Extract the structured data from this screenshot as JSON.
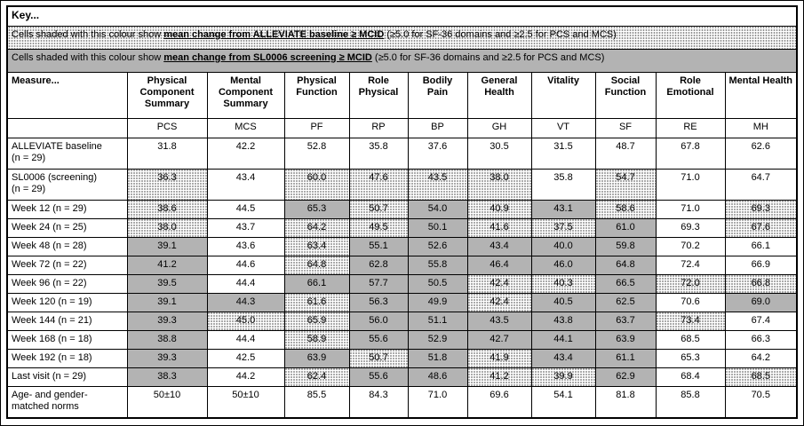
{
  "colors": {
    "light_shade": "#e8e8e8",
    "dark_shade": "#b3b3b3",
    "border": "#000000",
    "background": "#ffffff"
  },
  "key": {
    "title": "Key...",
    "light_prefix": "Cells shaded with this colour show ",
    "light_bold": "mean change from ALLEVIATE baseline ≥ MCID",
    "light_suffix": " (≥5.0 for SF-36 domains and ≥2.5 for PCS and MCS)",
    "dark_prefix": "Cells shaded with this colour show ",
    "dark_bold": "mean change from SL0006 screening ≥ MCID",
    "dark_suffix": " (≥5.0 for SF-36 domains and ≥2.5 for PCS and MCS)"
  },
  "table": {
    "measure_header": "Measure...",
    "columns": [
      {
        "label": "Physical Component Summary",
        "abbr": "PCS"
      },
      {
        "label": "Mental Component Summary",
        "abbr": "MCS"
      },
      {
        "label": "Physical Function",
        "abbr": "PF"
      },
      {
        "label": "Role Physical",
        "abbr": "RP"
      },
      {
        "label": "Bodily Pain",
        "abbr": "BP"
      },
      {
        "label": "General Health",
        "abbr": "GH"
      },
      {
        "label": "Vitality",
        "abbr": "VT"
      },
      {
        "label": "Social Function",
        "abbr": "SF"
      },
      {
        "label": "Role Emotional",
        "abbr": "RE"
      },
      {
        "label": "Mental Health",
        "abbr": "MH"
      }
    ],
    "shade_legend": {
      "none": "no shading",
      "light": "change from ALLEVIATE baseline ≥ MCID",
      "dark": "change from SL0006 screening ≥ MCID"
    },
    "rows": [
      {
        "measure": "ALLEVIATE baseline",
        "measure2": "(n = 29)",
        "values": [
          "31.8",
          "42.2",
          "52.8",
          "35.8",
          "37.6",
          "30.5",
          "31.5",
          "48.7",
          "67.8",
          "62.6"
        ],
        "shades": [
          "none",
          "none",
          "none",
          "none",
          "none",
          "none",
          "none",
          "none",
          "none",
          "none"
        ]
      },
      {
        "measure": "SL0006 (screening)",
        "measure2": "(n = 29)",
        "values": [
          "36.3",
          "43.4",
          "60.0",
          "47.6",
          "43.5",
          "38.0",
          "35.8",
          "54.7",
          "71.0",
          "64.7"
        ],
        "shades": [
          "light",
          "none",
          "light",
          "light",
          "light",
          "light",
          "none",
          "light",
          "none",
          "none"
        ]
      },
      {
        "measure": "Week 12 (n = 29)",
        "measure2": "",
        "values": [
          "38.6",
          "44.5",
          "65.3",
          "50.7",
          "54.0",
          "40.9",
          "43.1",
          "58.6",
          "71.0",
          "69.3"
        ],
        "shades": [
          "light",
          "none",
          "dark",
          "light",
          "dark",
          "light",
          "dark",
          "light",
          "none",
          "light"
        ]
      },
      {
        "measure": "Week 24 (n = 25)",
        "measure2": "",
        "values": [
          "38.0",
          "43.7",
          "64.2",
          "49.5",
          "50.1",
          "41.6",
          "37.5",
          "61.0",
          "69.3",
          "67.6"
        ],
        "shades": [
          "light",
          "none",
          "light",
          "light",
          "dark",
          "light",
          "light",
          "dark",
          "none",
          "light"
        ]
      },
      {
        "measure": "Week 48 (n = 28)",
        "measure2": "",
        "values": [
          "39.1",
          "43.6",
          "63.4",
          "55.1",
          "52.6",
          "43.4",
          "40.0",
          "59.8",
          "70.2",
          "66.1"
        ],
        "shades": [
          "dark",
          "none",
          "light",
          "dark",
          "dark",
          "dark",
          "dark",
          "dark",
          "none",
          "none"
        ]
      },
      {
        "measure": "Week 72 (n = 22)",
        "measure2": "",
        "values": [
          "41.2",
          "44.6",
          "64.8",
          "62.8",
          "55.8",
          "46.4",
          "46.0",
          "64.8",
          "72.4",
          "66.9"
        ],
        "shades": [
          "dark",
          "none",
          "light",
          "dark",
          "dark",
          "dark",
          "dark",
          "dark",
          "none",
          "none"
        ]
      },
      {
        "measure": "Week 96 (n = 22)",
        "measure2": "",
        "values": [
          "39.5",
          "44.4",
          "66.1",
          "57.7",
          "50.5",
          "42.4",
          "40.3",
          "66.5",
          "72.0",
          "66.8"
        ],
        "shades": [
          "dark",
          "none",
          "dark",
          "dark",
          "dark",
          "light",
          "light",
          "dark",
          "light",
          "light"
        ]
      },
      {
        "measure": "Week 120 (n = 19)",
        "measure2": "",
        "values": [
          "39.1",
          "44.3",
          "61.6",
          "56.3",
          "49.9",
          "42.4",
          "40.5",
          "62.5",
          "70.6",
          "69.0"
        ],
        "shades": [
          "dark",
          "dark",
          "light",
          "dark",
          "dark",
          "light",
          "dark",
          "dark",
          "none",
          "dark"
        ]
      },
      {
        "measure": "Week 144 (n = 21)",
        "measure2": "",
        "values": [
          "39.3",
          "45.0",
          "65.9",
          "56.0",
          "51.1",
          "43.5",
          "43.8",
          "63.7",
          "73.4",
          "67.4"
        ],
        "shades": [
          "dark",
          "light",
          "light",
          "dark",
          "dark",
          "dark",
          "dark",
          "dark",
          "light",
          "none"
        ]
      },
      {
        "measure": "Week 168 (n = 18)",
        "measure2": "",
        "values": [
          "38.8",
          "44.4",
          "58.9",
          "55.6",
          "52.9",
          "42.7",
          "44.1",
          "63.9",
          "68.5",
          "66.3"
        ],
        "shades": [
          "dark",
          "none",
          "light",
          "dark",
          "dark",
          "dark",
          "dark",
          "dark",
          "none",
          "none"
        ]
      },
      {
        "measure": "Week 192 (n = 18)",
        "measure2": "",
        "values": [
          "39.3",
          "42.5",
          "63.9",
          "50.7",
          "51.8",
          "41.9",
          "43.4",
          "61.1",
          "65.3",
          "64.2"
        ],
        "shades": [
          "dark",
          "none",
          "dark",
          "light",
          "dark",
          "light",
          "dark",
          "dark",
          "none",
          "none"
        ]
      },
      {
        "measure": "Last visit (n = 29)",
        "measure2": "",
        "values": [
          "38.3",
          "44.2",
          "62.4",
          "55.6",
          "48.6",
          "41.2",
          "39.9",
          "62.9",
          "68.4",
          "68.5"
        ],
        "shades": [
          "dark",
          "none",
          "light",
          "dark",
          "dark",
          "light",
          "light",
          "dark",
          "none",
          "light"
        ]
      },
      {
        "measure": "Age- and gender-",
        "measure2": "matched norms",
        "values": [
          "50±10",
          "50±10",
          "85.5",
          "84.3",
          "71.0",
          "69.6",
          "54.1",
          "81.8",
          "85.8",
          "70.5"
        ],
        "shades": [
          "none",
          "none",
          "none",
          "none",
          "none",
          "none",
          "none",
          "none",
          "none",
          "none"
        ]
      }
    ]
  }
}
